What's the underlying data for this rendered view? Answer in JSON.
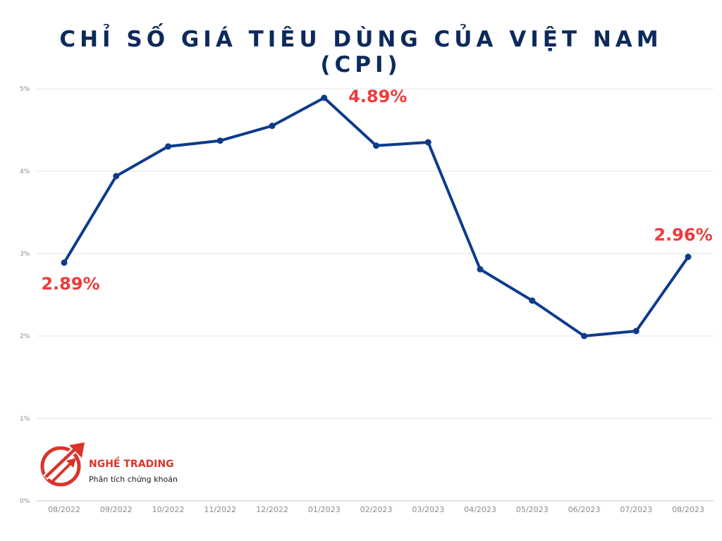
{
  "title_line1": "CHỈ SỐ GIÁ TIÊU DÙNG CỦA VIỆT NAM",
  "title_line2": "(CPI)",
  "colors": {
    "title": "#0d2a5c",
    "line": "#0d3b8c",
    "annotation": "#ee3b3b",
    "grid": "#e6e6e6",
    "brand_red": "#d9342b"
  },
  "logo": {
    "icon": "upward-arrow-circle-icon",
    "name": "NGHỀ TRADING",
    "tagline": "Phân tích chứng khoán"
  },
  "chart_data": {
    "type": "line",
    "title": "CHỈ SỐ GIÁ TIÊU DÙNG CỦA VIỆT NAM (CPI)",
    "xlabel": "",
    "ylabel": "",
    "categories": [
      "08/2022",
      "09/2022",
      "10/2022",
      "11/2022",
      "12/2022",
      "01/2023",
      "02/2023",
      "03/2023",
      "04/2023",
      "05/2023",
      "06/2023",
      "07/2023",
      "08/2023"
    ],
    "series": [
      {
        "values": [
          2.89,
          3.94,
          4.3,
          4.37,
          4.55,
          4.89,
          4.31,
          4.35,
          2.81,
          2.43,
          2.0,
          2.06,
          2.96
        ]
      }
    ],
    "ylim": [
      0,
      5
    ],
    "yticks": [
      "0%",
      "1%",
      "2%",
      "3%",
      "4%",
      "5%"
    ],
    "grid": true,
    "legend": "none",
    "annotations": [
      {
        "index": 0,
        "text": "2.89%"
      },
      {
        "index": 5,
        "text": "4.89%"
      },
      {
        "index": 12,
        "text": "2.96%"
      }
    ]
  }
}
